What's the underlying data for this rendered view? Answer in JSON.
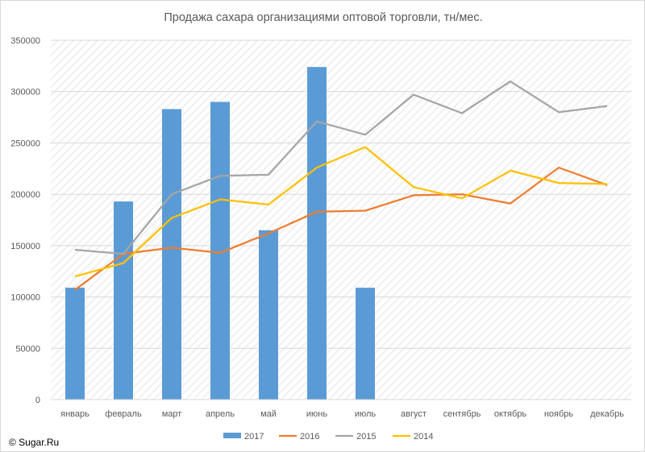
{
  "chart_data": {
    "type": "bar",
    "title": "Продажа сахара организациями оптовой торговли, тн/мес.",
    "xlabel": "",
    "ylabel": "",
    "categories": [
      "январь",
      "февраль",
      "март",
      "апрель",
      "май",
      "июнь",
      "июль",
      "август",
      "сентябрь",
      "октябрь",
      "ноябрь",
      "декабрь"
    ],
    "ylim": [
      0,
      350000
    ],
    "yticks": [
      0,
      50000,
      100000,
      150000,
      200000,
      250000,
      300000,
      350000
    ],
    "grid": true,
    "legend_position": "bottom",
    "hatched_background": true,
    "series": [
      {
        "name": "2017",
        "type": "bar",
        "color": "#5b9bd5",
        "values": [
          109000,
          193000,
          283000,
          290000,
          165000,
          324000,
          109000,
          null,
          null,
          null,
          null,
          null
        ]
      },
      {
        "name": "2016",
        "type": "line",
        "color": "#ed7d31",
        "values": [
          107000,
          142000,
          148000,
          143000,
          162000,
          183000,
          184000,
          199000,
          200000,
          191000,
          226000,
          209000
        ]
      },
      {
        "name": "2015",
        "type": "line",
        "color": "#a5a5a5",
        "values": [
          146000,
          142000,
          200000,
          218000,
          219000,
          271000,
          258000,
          297000,
          279000,
          310000,
          280000,
          286000
        ]
      },
      {
        "name": "2014",
        "type": "line",
        "color": "#ffc000",
        "values": [
          120000,
          133000,
          177000,
          195000,
          190000,
          226000,
          246000,
          207000,
          196000,
          223000,
          211000,
          210000
        ]
      }
    ]
  },
  "copyright": "© Sugar.Ru"
}
